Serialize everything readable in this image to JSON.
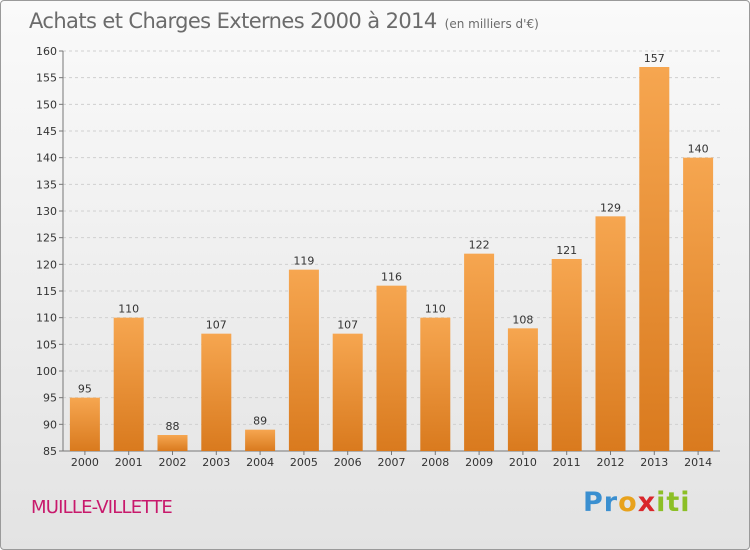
{
  "header": {
    "title": "Achats et Charges Externes 2000 à 2014",
    "unit": "(en milliers d'€)"
  },
  "footer": {
    "commune": "MUILLE-VILLETTE",
    "brand": [
      "P",
      "r",
      "o",
      "x",
      "i",
      "ti"
    ]
  },
  "colors": {
    "bar_light": "#f6a650",
    "bar_dark": "#d97a1e",
    "title": "#6b6b6b",
    "commune": "#c8196c"
  },
  "chart_data": {
    "type": "bar",
    "title": "Achats et Charges Externes 2000 à 2014",
    "subtitle": "(en milliers d'€)",
    "xlabel": "",
    "ylabel": "",
    "categories": [
      "2000",
      "2001",
      "2002",
      "2003",
      "2004",
      "2005",
      "2006",
      "2007",
      "2008",
      "2009",
      "2010",
      "2011",
      "2012",
      "2013",
      "2014"
    ],
    "values": [
      95,
      110,
      88,
      107,
      89,
      119,
      107,
      116,
      110,
      122,
      108,
      121,
      129,
      157,
      140
    ],
    "ylim": [
      85,
      160
    ],
    "yticks": [
      85,
      90,
      95,
      100,
      105,
      110,
      115,
      120,
      125,
      130,
      135,
      140,
      145,
      150,
      155,
      160
    ],
    "grid": true,
    "data_labels": true
  }
}
